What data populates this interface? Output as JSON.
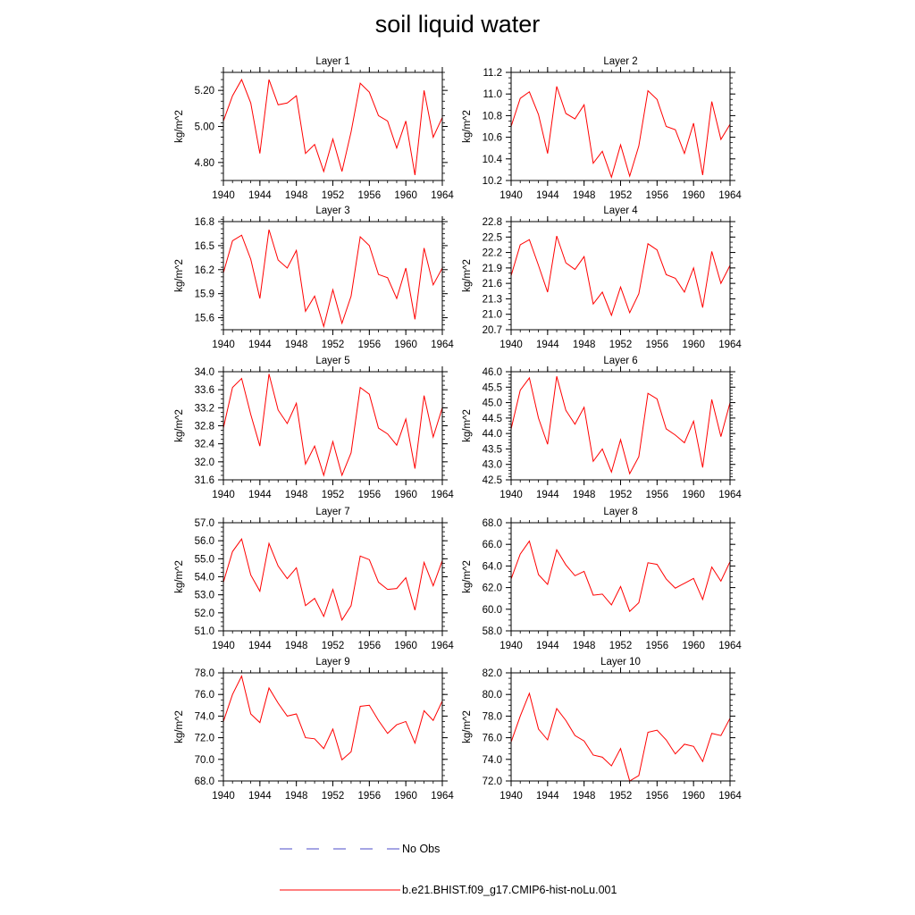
{
  "title": "soil liquid water",
  "legend": {
    "placement": "bottom-center",
    "entries": [
      {
        "label": "No Obs",
        "color": "#4b4bc8",
        "style": "dashed"
      },
      {
        "label": "b.e21.BHIST.f09_g17.CMIP6-hist-noLu.001",
        "color": "#ff0000",
        "style": "solid"
      }
    ]
  },
  "chart_data": [
    {
      "type": "line",
      "title": "Layer 1",
      "ylabel": "kg/m^2",
      "xlim": [
        1940,
        1964
      ],
      "ylim": [
        4.7,
        5.3
      ],
      "xticks": [
        1940,
        1944,
        1948,
        1952,
        1956,
        1960,
        1964
      ],
      "yticks": [
        4.8,
        5.0,
        5.2
      ],
      "ytick_labels": [
        "4.80",
        "5.00",
        "5.20"
      ],
      "yminor": 0.04,
      "grid": false,
      "x": [
        1940,
        1941,
        1942,
        1943,
        1944,
        1945,
        1946,
        1947,
        1948,
        1949,
        1950,
        1951,
        1952,
        1953,
        1954,
        1955,
        1956,
        1957,
        1958,
        1959,
        1960,
        1961,
        1962,
        1963,
        1964
      ],
      "series": [
        {
          "name": "b.e21.BHIST.f09_g17.CMIP6-hist-noLu.001",
          "color": "#ff0000",
          "values": [
            5.03,
            5.17,
            5.26,
            5.13,
            4.85,
            5.26,
            5.12,
            5.13,
            5.17,
            4.85,
            4.9,
            4.75,
            4.93,
            4.75,
            4.97,
            5.24,
            5.19,
            5.06,
            5.03,
            4.88,
            5.03,
            4.73,
            5.2,
            4.94,
            5.05
          ]
        }
      ]
    },
    {
      "type": "line",
      "title": "Layer 2",
      "ylabel": "kg/m^2",
      "xlim": [
        1940,
        1964
      ],
      "ylim": [
        10.2,
        11.2
      ],
      "xticks": [
        1940,
        1944,
        1948,
        1952,
        1956,
        1960,
        1964
      ],
      "yticks": [
        10.2,
        10.4,
        10.6,
        10.8,
        11.0,
        11.2
      ],
      "ytick_labels": [
        "10.2",
        "10.4",
        "10.6",
        "10.8",
        "11.0",
        "11.2"
      ],
      "yminor": 0.05,
      "grid": false,
      "x": [
        1940,
        1941,
        1942,
        1943,
        1944,
        1945,
        1946,
        1947,
        1948,
        1949,
        1950,
        1951,
        1952,
        1953,
        1954,
        1955,
        1956,
        1957,
        1958,
        1959,
        1960,
        1961,
        1962,
        1963,
        1964
      ],
      "series": [
        {
          "name": "b.e21.BHIST.f09_g17.CMIP6-hist-noLu.001",
          "color": "#ff0000",
          "values": [
            10.7,
            10.96,
            11.02,
            10.81,
            10.45,
            11.07,
            10.82,
            10.77,
            10.9,
            10.36,
            10.47,
            10.23,
            10.53,
            10.24,
            10.52,
            11.03,
            10.95,
            10.7,
            10.67,
            10.45,
            10.73,
            10.25,
            10.93,
            10.58,
            10.72
          ]
        }
      ]
    },
    {
      "type": "line",
      "title": "Layer 3",
      "ylabel": "kg/m^2",
      "xlim": [
        1940,
        1964
      ],
      "ylim": [
        15.45,
        16.8
      ],
      "xticks": [
        1940,
        1944,
        1948,
        1952,
        1956,
        1960,
        1964
      ],
      "yticks": [
        15.6,
        15.9,
        16.2,
        16.5,
        16.8
      ],
      "ytick_labels": [
        "15.6",
        "15.9",
        "16.2",
        "16.5",
        "16.8"
      ],
      "yminor": 0.06,
      "grid": false,
      "x": [
        1940,
        1941,
        1942,
        1943,
        1944,
        1945,
        1946,
        1947,
        1948,
        1949,
        1950,
        1951,
        1952,
        1953,
        1954,
        1955,
        1956,
        1957,
        1958,
        1959,
        1960,
        1961,
        1962,
        1963,
        1964
      ],
      "series": [
        {
          "name": "b.e21.BHIST.f09_g17.CMIP6-hist-noLu.001",
          "color": "#ff0000",
          "values": [
            16.16,
            16.56,
            16.63,
            16.33,
            15.84,
            16.7,
            16.32,
            16.22,
            16.44,
            15.68,
            15.87,
            15.49,
            15.95,
            15.53,
            15.87,
            16.61,
            16.5,
            16.14,
            16.1,
            15.84,
            16.22,
            15.58,
            16.47,
            16.01,
            16.22
          ]
        }
      ]
    },
    {
      "type": "line",
      "title": "Layer 4",
      "ylabel": "kg/m^2",
      "xlim": [
        1940,
        1964
      ],
      "ylim": [
        20.7,
        22.8
      ],
      "xticks": [
        1940,
        1944,
        1948,
        1952,
        1956,
        1960,
        1964
      ],
      "yticks": [
        20.7,
        21.0,
        21.3,
        21.6,
        21.9,
        22.2,
        22.5,
        22.8
      ],
      "ytick_labels": [
        "20.7",
        "21.0",
        "21.3",
        "21.6",
        "21.9",
        "22.2",
        "22.5",
        "22.8"
      ],
      "yminor": 0.1,
      "grid": false,
      "x": [
        1940,
        1941,
        1942,
        1943,
        1944,
        1945,
        1946,
        1947,
        1948,
        1949,
        1950,
        1951,
        1952,
        1953,
        1954,
        1955,
        1956,
        1957,
        1958,
        1959,
        1960,
        1961,
        1962,
        1963,
        1964
      ],
      "series": [
        {
          "name": "b.e21.BHIST.f09_g17.CMIP6-hist-noLu.001",
          "color": "#ff0000",
          "values": [
            21.75,
            22.35,
            22.45,
            21.95,
            21.43,
            22.52,
            22.0,
            21.87,
            22.12,
            21.2,
            21.43,
            20.98,
            21.53,
            21.03,
            21.4,
            22.37,
            22.25,
            21.77,
            21.7,
            21.43,
            21.9,
            21.13,
            22.22,
            21.6,
            21.95
          ]
        }
      ]
    },
    {
      "type": "line",
      "title": "Layer 5",
      "ylabel": "kg/m^2",
      "xlim": [
        1940,
        1964
      ],
      "ylim": [
        31.6,
        34.0
      ],
      "xticks": [
        1940,
        1944,
        1948,
        1952,
        1956,
        1960,
        1964
      ],
      "yticks": [
        31.6,
        32.0,
        32.4,
        32.8,
        33.2,
        33.6,
        34.0
      ],
      "ytick_labels": [
        "31.6",
        "32.0",
        "32.4",
        "32.8",
        "33.2",
        "33.6",
        "34.0"
      ],
      "yminor": 0.1,
      "grid": false,
      "x": [
        1940,
        1941,
        1942,
        1943,
        1944,
        1945,
        1946,
        1947,
        1948,
        1949,
        1950,
        1951,
        1952,
        1953,
        1954,
        1955,
        1956,
        1957,
        1958,
        1959,
        1960,
        1961,
        1962,
        1963,
        1964
      ],
      "series": [
        {
          "name": "b.e21.BHIST.f09_g17.CMIP6-hist-noLu.001",
          "color": "#ff0000",
          "values": [
            32.75,
            33.65,
            33.85,
            33.05,
            32.35,
            33.95,
            33.15,
            32.85,
            33.3,
            31.95,
            32.35,
            31.7,
            32.45,
            31.7,
            32.2,
            33.65,
            33.5,
            32.75,
            32.62,
            32.37,
            32.95,
            31.85,
            33.47,
            32.55,
            33.2
          ]
        }
      ]
    },
    {
      "type": "line",
      "title": "Layer 6",
      "ylabel": "kg/m^2",
      "xlim": [
        1940,
        1964
      ],
      "ylim": [
        42.5,
        46.0
      ],
      "xticks": [
        1940,
        1944,
        1948,
        1952,
        1956,
        1960,
        1964
      ],
      "yticks": [
        42.5,
        43.0,
        43.5,
        44.0,
        44.5,
        45.0,
        45.5,
        46.0
      ],
      "ytick_labels": [
        "42.5",
        "43.0",
        "43.5",
        "44.0",
        "44.5",
        "45.0",
        "45.5",
        "46.0"
      ],
      "yminor": 0.1,
      "grid": false,
      "x": [
        1940,
        1941,
        1942,
        1943,
        1944,
        1945,
        1946,
        1947,
        1948,
        1949,
        1950,
        1951,
        1952,
        1953,
        1954,
        1955,
        1956,
        1957,
        1958,
        1959,
        1960,
        1961,
        1962,
        1963,
        1964
      ],
      "series": [
        {
          "name": "b.e21.BHIST.f09_g17.CMIP6-hist-noLu.001",
          "color": "#ff0000",
          "values": [
            44.15,
            45.4,
            45.8,
            44.5,
            43.65,
            45.85,
            44.75,
            44.3,
            44.85,
            43.1,
            43.5,
            42.75,
            43.8,
            42.7,
            43.25,
            45.3,
            45.12,
            44.15,
            43.95,
            43.7,
            44.4,
            42.9,
            45.1,
            43.9,
            45.0
          ]
        }
      ]
    },
    {
      "type": "line",
      "title": "Layer 7",
      "ylabel": "kg/m^2",
      "xlim": [
        1940,
        1964
      ],
      "ylim": [
        51.0,
        57.0
      ],
      "xticks": [
        1940,
        1944,
        1948,
        1952,
        1956,
        1960,
        1964
      ],
      "yticks": [
        51.0,
        52.0,
        53.0,
        54.0,
        55.0,
        56.0,
        57.0
      ],
      "ytick_labels": [
        "51.0",
        "52.0",
        "53.0",
        "54.0",
        "55.0",
        "56.0",
        "57.0"
      ],
      "yminor": 0.25,
      "grid": false,
      "x": [
        1940,
        1941,
        1942,
        1943,
        1944,
        1945,
        1946,
        1947,
        1948,
        1949,
        1950,
        1951,
        1952,
        1953,
        1954,
        1955,
        1956,
        1957,
        1958,
        1959,
        1960,
        1961,
        1962,
        1963,
        1964
      ],
      "series": [
        {
          "name": "b.e21.BHIST.f09_g17.CMIP6-hist-noLu.001",
          "color": "#ff0000",
          "values": [
            53.7,
            55.4,
            56.1,
            54.1,
            53.2,
            55.85,
            54.6,
            53.9,
            54.5,
            52.4,
            52.8,
            51.8,
            53.3,
            51.6,
            52.4,
            55.15,
            54.95,
            53.7,
            53.3,
            53.35,
            53.95,
            52.15,
            54.8,
            53.5,
            54.9
          ]
        }
      ]
    },
    {
      "type": "line",
      "title": "Layer 8",
      "ylabel": "kg/m^2",
      "xlim": [
        1940,
        1964
      ],
      "ylim": [
        58.0,
        68.0
      ],
      "xticks": [
        1940,
        1944,
        1948,
        1952,
        1956,
        1960,
        1964
      ],
      "yticks": [
        58.0,
        60.0,
        62.0,
        64.0,
        66.0,
        68.0
      ],
      "ytick_labels": [
        "58.0",
        "60.0",
        "62.0",
        "64.0",
        "66.0",
        "68.0"
      ],
      "yminor": 0.5,
      "grid": false,
      "x": [
        1940,
        1941,
        1942,
        1943,
        1944,
        1945,
        1946,
        1947,
        1948,
        1949,
        1950,
        1951,
        1952,
        1953,
        1954,
        1955,
        1956,
        1957,
        1958,
        1959,
        1960,
        1961,
        1962,
        1963,
        1964
      ],
      "series": [
        {
          "name": "b.e21.BHIST.f09_g17.CMIP6-hist-noLu.001",
          "color": "#ff0000",
          "values": [
            62.8,
            65.1,
            66.3,
            63.2,
            62.3,
            65.5,
            64.1,
            63.1,
            63.5,
            61.3,
            61.4,
            60.4,
            62.1,
            59.8,
            60.6,
            64.3,
            64.15,
            62.8,
            61.95,
            62.4,
            62.85,
            60.9,
            63.9,
            62.6,
            64.4
          ]
        }
      ]
    },
    {
      "type": "line",
      "title": "Layer 9",
      "ylabel": "kg/m^2",
      "xlim": [
        1940,
        1964
      ],
      "ylim": [
        68.0,
        78.0
      ],
      "xticks": [
        1940,
        1944,
        1948,
        1952,
        1956,
        1960,
        1964
      ],
      "yticks": [
        68.0,
        70.0,
        72.0,
        74.0,
        76.0,
        78.0
      ],
      "ytick_labels": [
        "68.0",
        "70.0",
        "72.0",
        "74.0",
        "76.0",
        "78.0"
      ],
      "yminor": 0.5,
      "grid": false,
      "x": [
        1940,
        1941,
        1942,
        1943,
        1944,
        1945,
        1946,
        1947,
        1948,
        1949,
        1950,
        1951,
        1952,
        1953,
        1954,
        1955,
        1956,
        1957,
        1958,
        1959,
        1960,
        1961,
        1962,
        1963,
        1964
      ],
      "series": [
        {
          "name": "b.e21.BHIST.f09_g17.CMIP6-hist-noLu.001",
          "color": "#ff0000",
          "values": [
            73.5,
            76.0,
            77.7,
            74.2,
            73.4,
            76.6,
            75.2,
            74.0,
            74.2,
            72.0,
            71.9,
            71.0,
            72.8,
            69.95,
            70.7,
            74.9,
            75.0,
            73.6,
            72.4,
            73.2,
            73.5,
            71.5,
            74.5,
            73.6,
            75.4
          ]
        }
      ]
    },
    {
      "type": "line",
      "title": "Layer 10",
      "ylabel": "kg/m^2",
      "xlim": [
        1940,
        1964
      ],
      "ylim": [
        72.0,
        82.0
      ],
      "xticks": [
        1940,
        1944,
        1948,
        1952,
        1956,
        1960,
        1964
      ],
      "yticks": [
        72.0,
        74.0,
        76.0,
        78.0,
        80.0,
        82.0
      ],
      "ytick_labels": [
        "72.0",
        "74.0",
        "76.0",
        "78.0",
        "80.0",
        "82.0"
      ],
      "yminor": 0.5,
      "grid": false,
      "x": [
        1940,
        1941,
        1942,
        1943,
        1944,
        1945,
        1946,
        1947,
        1948,
        1949,
        1950,
        1951,
        1952,
        1953,
        1954,
        1955,
        1956,
        1957,
        1958,
        1959,
        1960,
        1961,
        1962,
        1963,
        1964
      ],
      "series": [
        {
          "name": "b.e21.BHIST.f09_g17.CMIP6-hist-noLu.001",
          "color": "#ff0000",
          "values": [
            75.6,
            78.0,
            80.1,
            76.8,
            75.8,
            78.7,
            77.6,
            76.2,
            75.7,
            74.4,
            74.2,
            73.4,
            75.0,
            72.0,
            72.5,
            76.5,
            76.7,
            75.8,
            74.5,
            75.4,
            75.2,
            73.8,
            76.4,
            76.2,
            77.8
          ]
        }
      ]
    }
  ]
}
